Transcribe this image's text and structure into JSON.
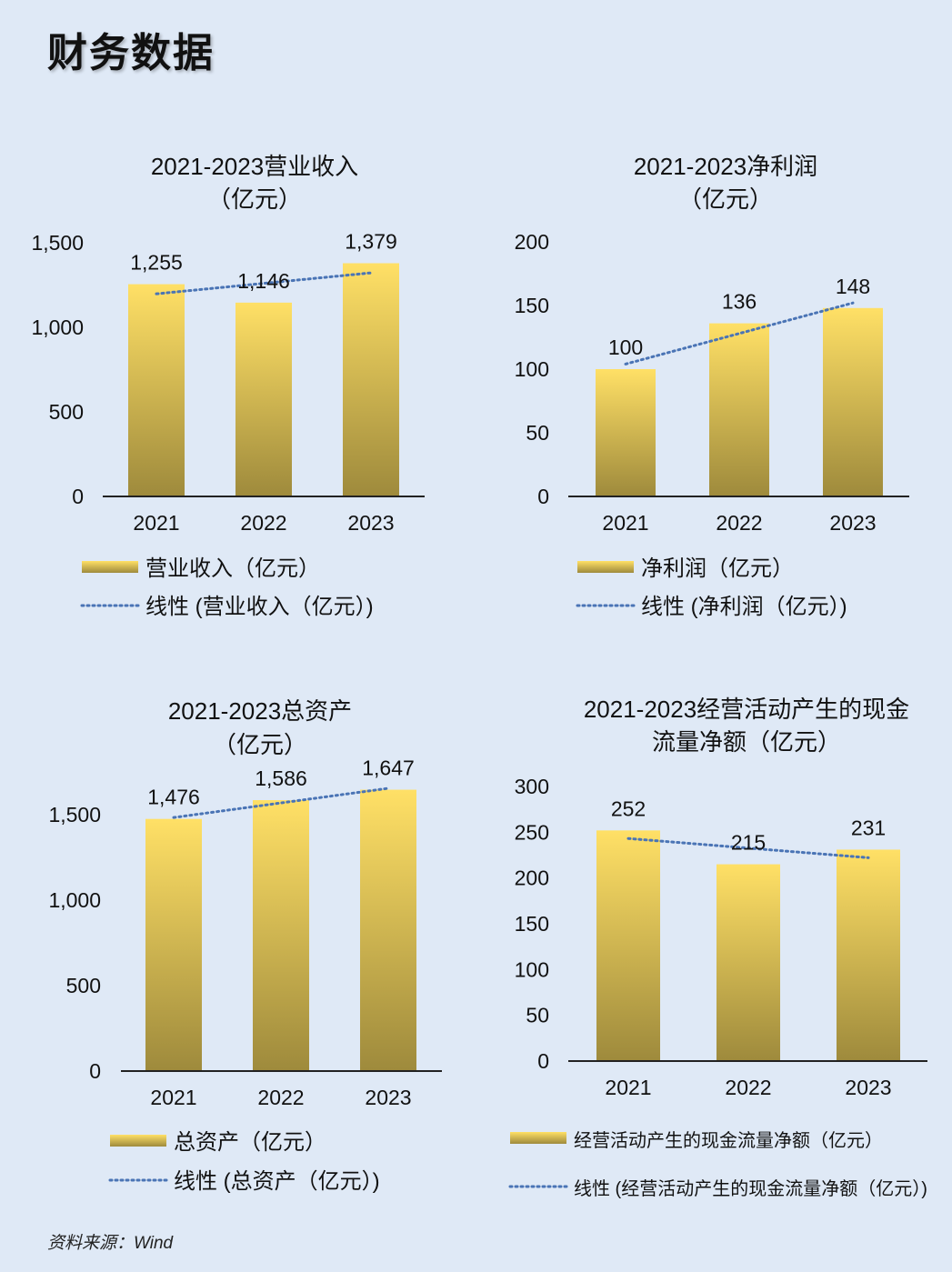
{
  "page": {
    "title": "财务数据",
    "source": "资料来源：Wind"
  },
  "colors": {
    "bar_top": "#ffe066",
    "bar_bottom": "#9e8a3c",
    "trend": "#4a74b5",
    "axis": "#222222"
  },
  "chart_data": [
    {
      "type": "bar",
      "title": [
        "2021-2023营业收入",
        "（亿元）"
      ],
      "categories": [
        "2021",
        "2022",
        "2023"
      ],
      "series": [
        {
          "name": "营业收入（亿元）",
          "values": [
            1255,
            1146,
            1379
          ]
        }
      ],
      "data_labels": [
        "1,255",
        "1,146",
        "1,379"
      ],
      "yticks": [
        "0",
        "500",
        "1,000",
        "1,500"
      ],
      "ylim": [
        0,
        1500
      ],
      "trendline": {
        "type": "linear",
        "label": "线性 (营业收入（亿元）)"
      },
      "legend": "bottom"
    },
    {
      "type": "bar",
      "title": [
        "2021-2023净利润",
        "（亿元）"
      ],
      "categories": [
        "2021",
        "2022",
        "2023"
      ],
      "series": [
        {
          "name": "净利润（亿元）",
          "values": [
            100,
            136,
            148
          ]
        }
      ],
      "data_labels": [
        "100",
        "136",
        "148"
      ],
      "yticks": [
        "0",
        "50",
        "100",
        "150",
        "200"
      ],
      "ylim": [
        0,
        200
      ],
      "trendline": {
        "type": "linear",
        "label": "线性 (净利润（亿元）)"
      },
      "legend": "bottom"
    },
    {
      "type": "bar",
      "title": [
        "2021-2023总资产",
        "（亿元）"
      ],
      "categories": [
        "2021",
        "2022",
        "2023"
      ],
      "series": [
        {
          "name": "总资产（亿元）",
          "values": [
            1476,
            1586,
            1647
          ]
        }
      ],
      "data_labels": [
        "1,476",
        "1,586",
        "1,647"
      ],
      "yticks": [
        "0",
        "500",
        "1,000",
        "1,500"
      ],
      "ylim": [
        0,
        1650
      ],
      "trendline": {
        "type": "linear",
        "label": "线性 (总资产（亿元）)"
      },
      "legend": "bottom"
    },
    {
      "type": "bar",
      "title": [
        "2021-2023经营活动产生的现金",
        "流量净额（亿元）"
      ],
      "categories": [
        "2021",
        "2022",
        "2023"
      ],
      "series": [
        {
          "name": "经营活动产生的现金流量净额（亿元）",
          "values": [
            252,
            215,
            231
          ]
        }
      ],
      "data_labels": [
        "252",
        "215",
        "231"
      ],
      "yticks": [
        "0",
        "50",
        "100",
        "150",
        "200",
        "250",
        "300"
      ],
      "ylim": [
        0,
        300
      ],
      "trendline": {
        "type": "linear",
        "label": "线性 (经营活动产生的现金流量净额（亿元）)"
      },
      "legend": "bottom"
    }
  ]
}
